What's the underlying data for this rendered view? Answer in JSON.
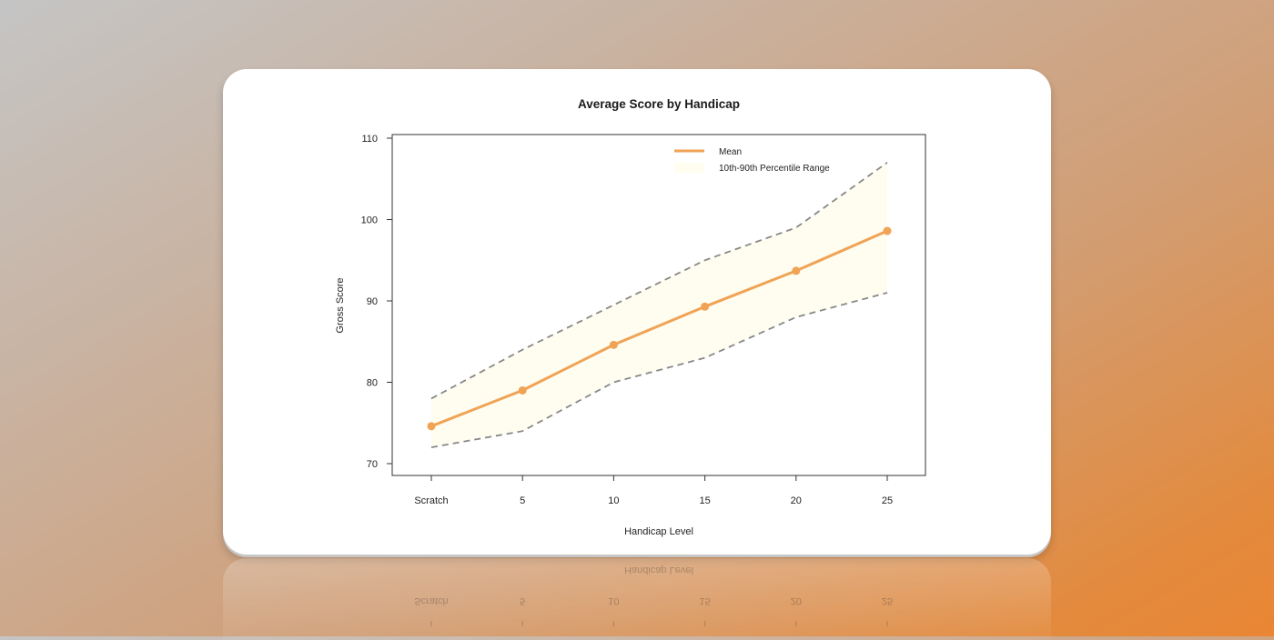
{
  "chart_data": {
    "type": "line",
    "title": "Average Score by Handicap",
    "xlabel": "Handicap Level",
    "ylabel": "Gross Score",
    "categories": [
      "Scratch",
      "5",
      "10",
      "15",
      "20",
      "25"
    ],
    "ylim": [
      70,
      110
    ],
    "yticks": [
      70,
      80,
      90,
      100,
      110
    ],
    "grid": false,
    "legend_position": "top-right",
    "series": [
      {
        "name": "Mean",
        "values": [
          74.6,
          79.0,
          84.6,
          89.3,
          93.7,
          98.6
        ],
        "color": "#f0a355"
      }
    ],
    "band": {
      "name": "10th-90th Percentile Range",
      "lower": [
        72,
        74,
        80,
        83,
        88,
        91
      ],
      "upper": [
        78,
        84,
        89.5,
        95,
        99,
        107
      ],
      "fill_color": "#fefdf0",
      "line_color": "#888888"
    }
  }
}
